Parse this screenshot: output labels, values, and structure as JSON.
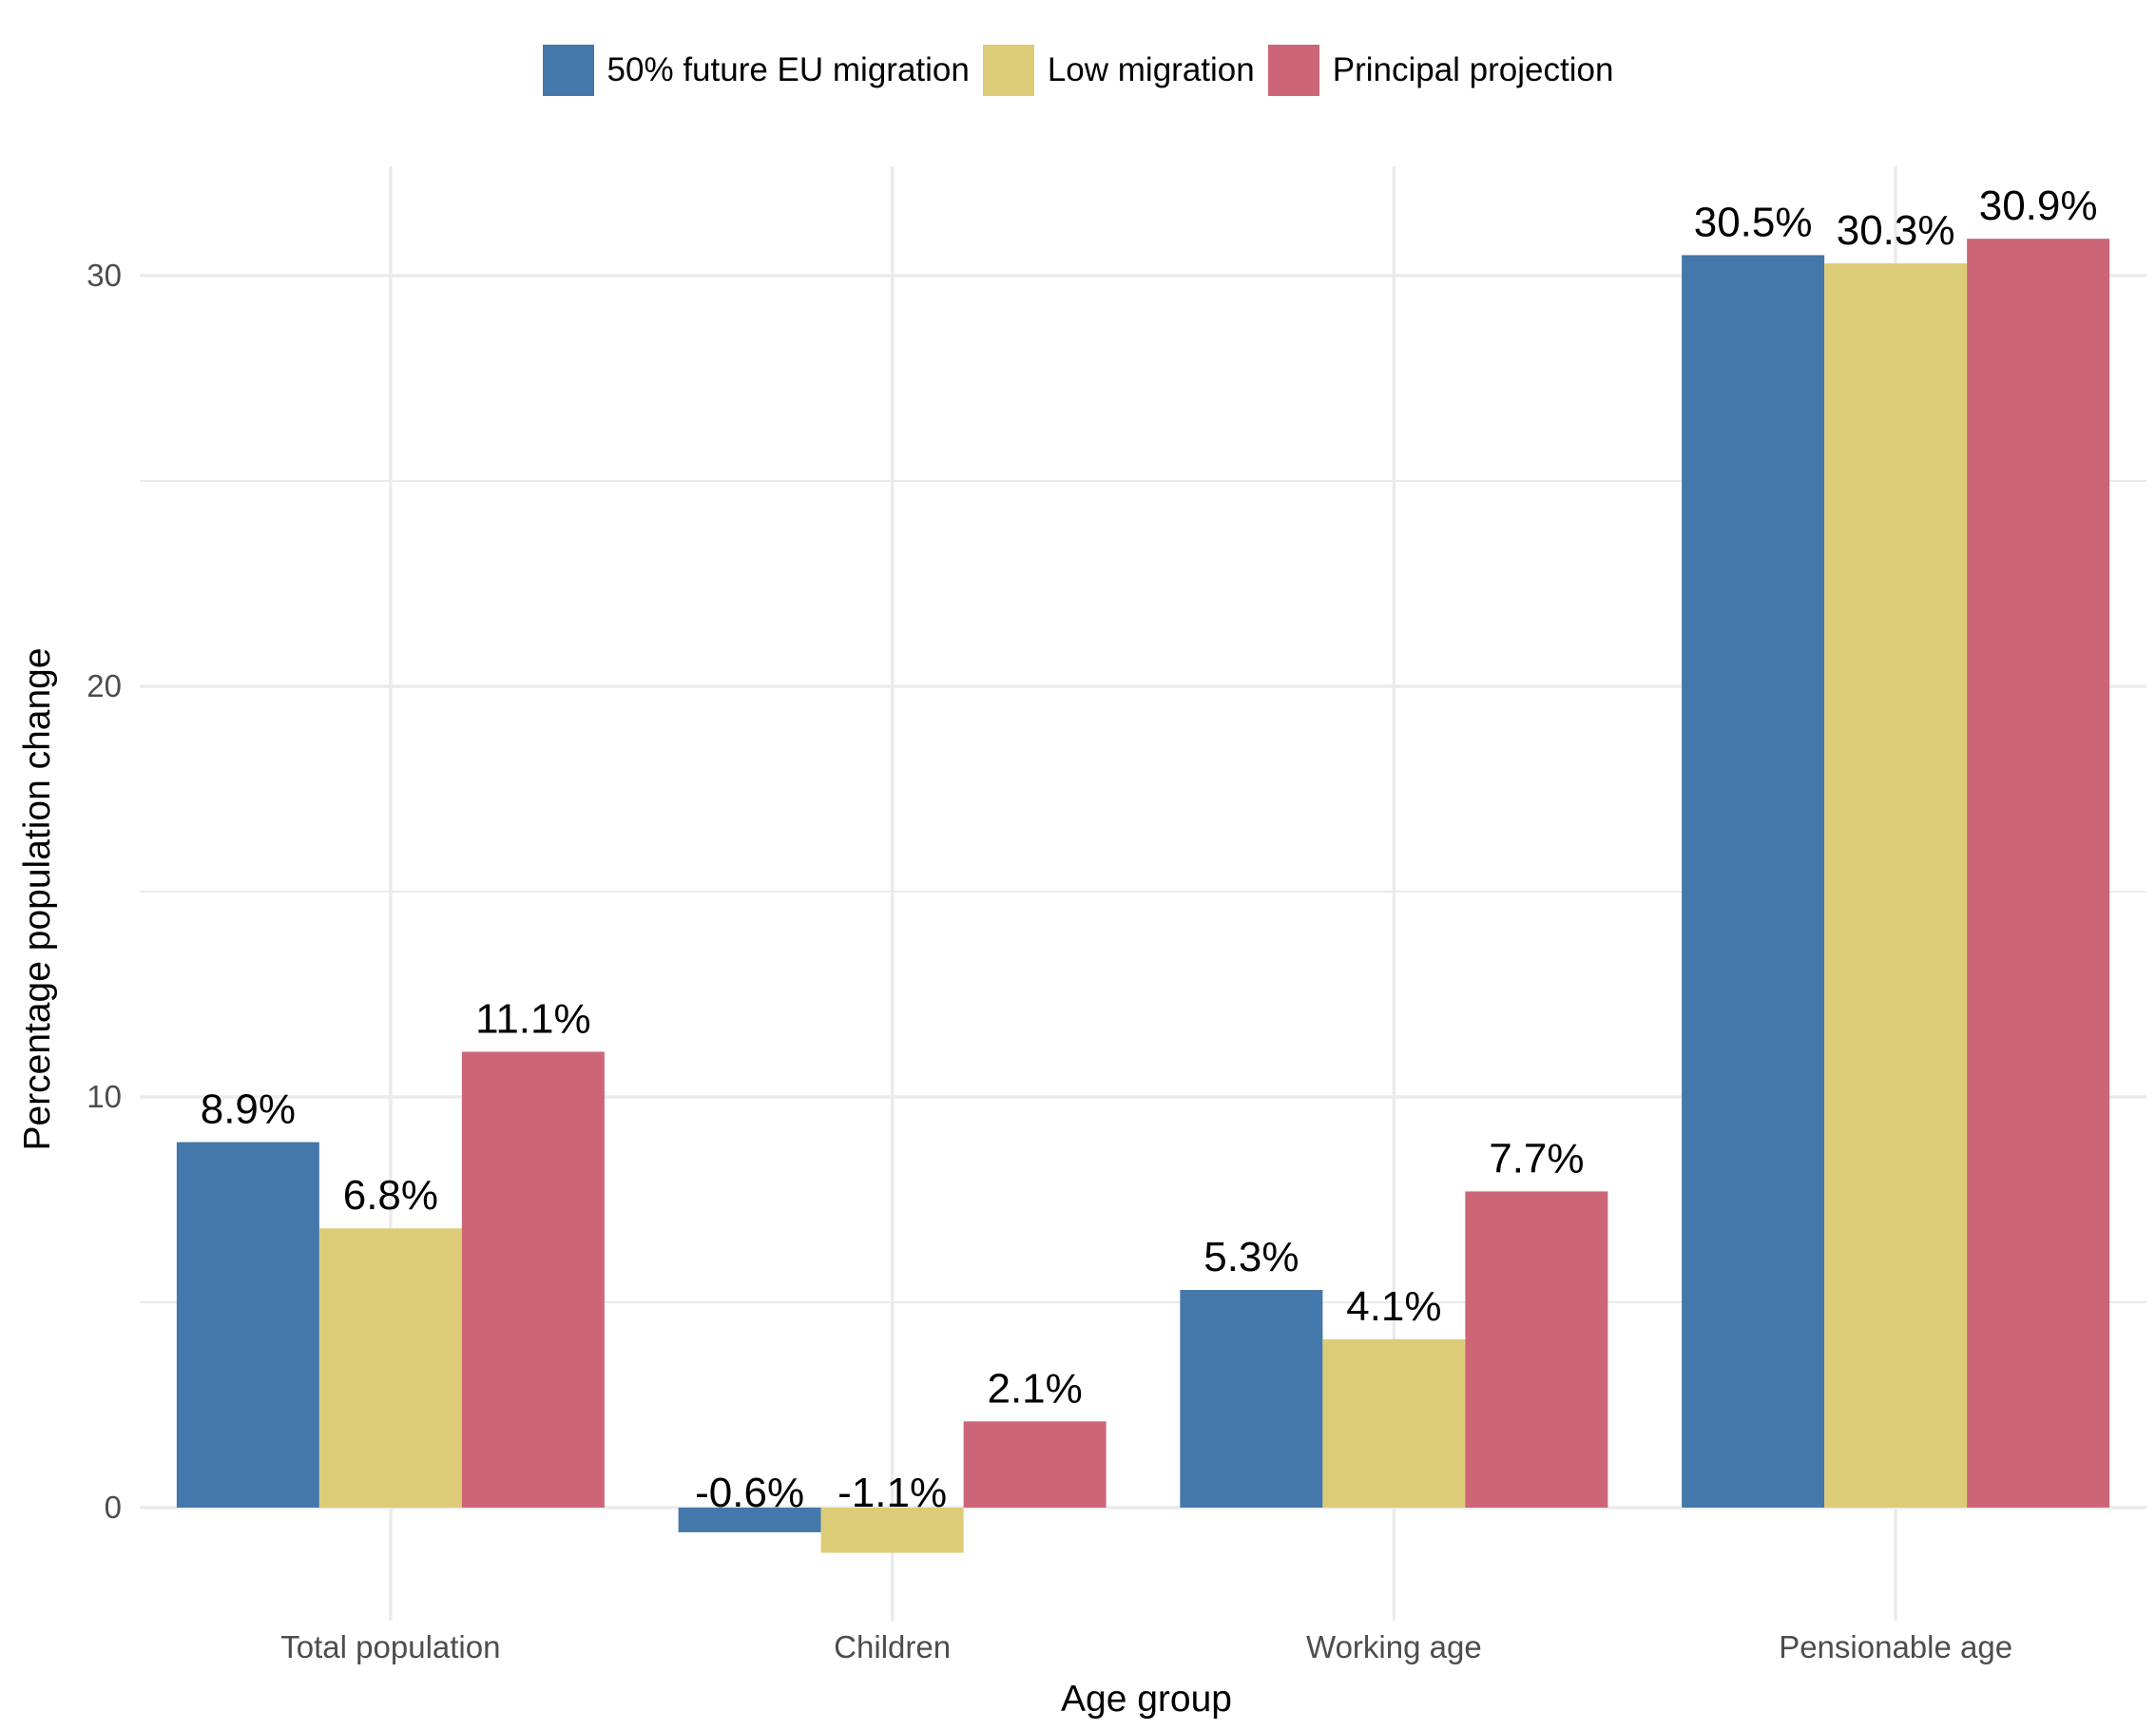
{
  "chart_data": {
    "type": "bar",
    "categories": [
      "Total population",
      "Children",
      "Working age",
      "Pensionable age"
    ],
    "series": [
      {
        "name": "50% future EU migration",
        "color": "#4477aa",
        "values": [
          8.9,
          -0.6,
          5.3,
          30.5
        ],
        "labels": [
          "8.9%",
          "-0.6%",
          "5.3%",
          "30.5%"
        ]
      },
      {
        "name": "Low migration",
        "color": "#ddcc77",
        "values": [
          6.8,
          -1.1,
          4.1,
          30.3
        ],
        "labels": [
          "6.8%",
          "-1.1%",
          "4.1%",
          "30.3%"
        ]
      },
      {
        "name": "Principal projection",
        "color": "#cc6677",
        "values": [
          11.1,
          2.1,
          7.7,
          30.9
        ],
        "labels": [
          "11.1%",
          "2.1%",
          "7.7%",
          "30.9%"
        ]
      }
    ],
    "xlabel": "Age group",
    "ylabel": "Percentage population change",
    "yticks": [
      0,
      10,
      20,
      30
    ],
    "ylim": [
      -2.5,
      32.5
    ],
    "grid": true,
    "legend_position": "top"
  }
}
